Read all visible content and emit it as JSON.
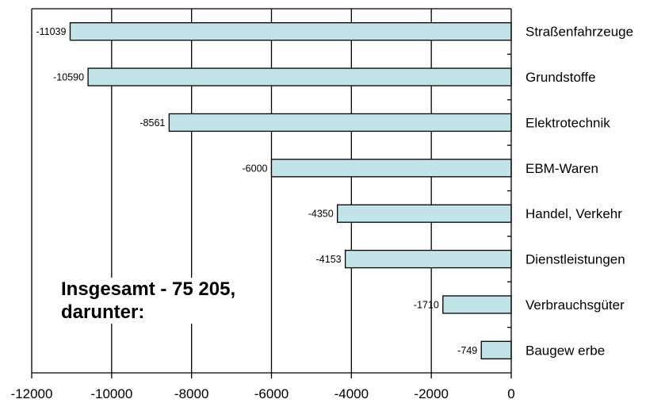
{
  "chart_data": {
    "type": "bar",
    "orientation": "horizontal",
    "categories": [
      "Straßenfahrzeuge",
      "Grundstoffe",
      "Elektrotechnik",
      "EBM-Waren",
      "Handel, Verkehr",
      "Dienstleistungen",
      "Verbrauchsgüter",
      "Baugew erbe"
    ],
    "values": [
      -11039,
      -10590,
      -8561,
      -6000,
      -4350,
      -4153,
      -1710,
      -749
    ],
    "value_labels": [
      "-11039",
      "-10590",
      "-8561",
      "-6000",
      "-4350",
      "-4153",
      "-1710",
      "-749"
    ],
    "xlim": [
      -12000,
      0
    ],
    "xticks": [
      "-12000",
      "-10000",
      "-8000",
      "-6000",
      "-4000",
      "-2000",
      "0"
    ],
    "grid": "vertical",
    "bar_color": "#c0e4e8",
    "annotation": [
      "Insgesamt - 75 205,",
      "darunter:"
    ]
  }
}
